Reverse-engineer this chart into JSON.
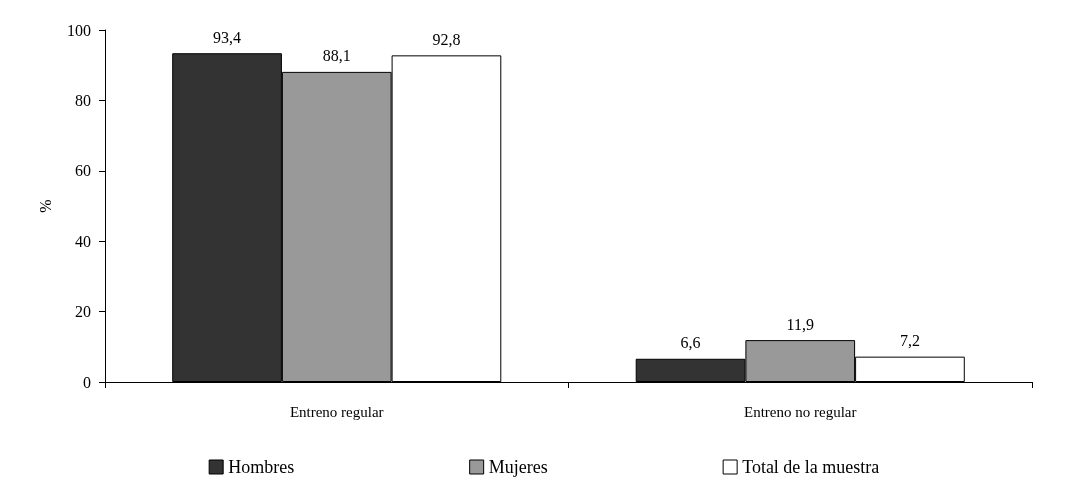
{
  "chart_data": {
    "type": "bar",
    "ylabel": "%",
    "categories": [
      "Entreno regular",
      "Entreno no regular"
    ],
    "series": [
      {
        "name": "Hombres",
        "color": "#333333",
        "values": [
          93.4,
          6.6
        ],
        "value_labels": [
          "93,4",
          "6,6"
        ]
      },
      {
        "name": "Mujeres",
        "color": "#999999",
        "values": [
          88.1,
          11.9
        ],
        "value_labels": [
          "88,1",
          "11,9"
        ]
      },
      {
        "name": "Total de la muestra",
        "color": "#ffffff",
        "values": [
          92.8,
          7.2
        ],
        "value_labels": [
          "92,8",
          "7,2"
        ]
      }
    ],
    "ylim": [
      0,
      100
    ],
    "yticks": [
      0,
      20,
      40,
      60,
      80,
      100
    ],
    "grid": false,
    "legend": "bottom"
  }
}
